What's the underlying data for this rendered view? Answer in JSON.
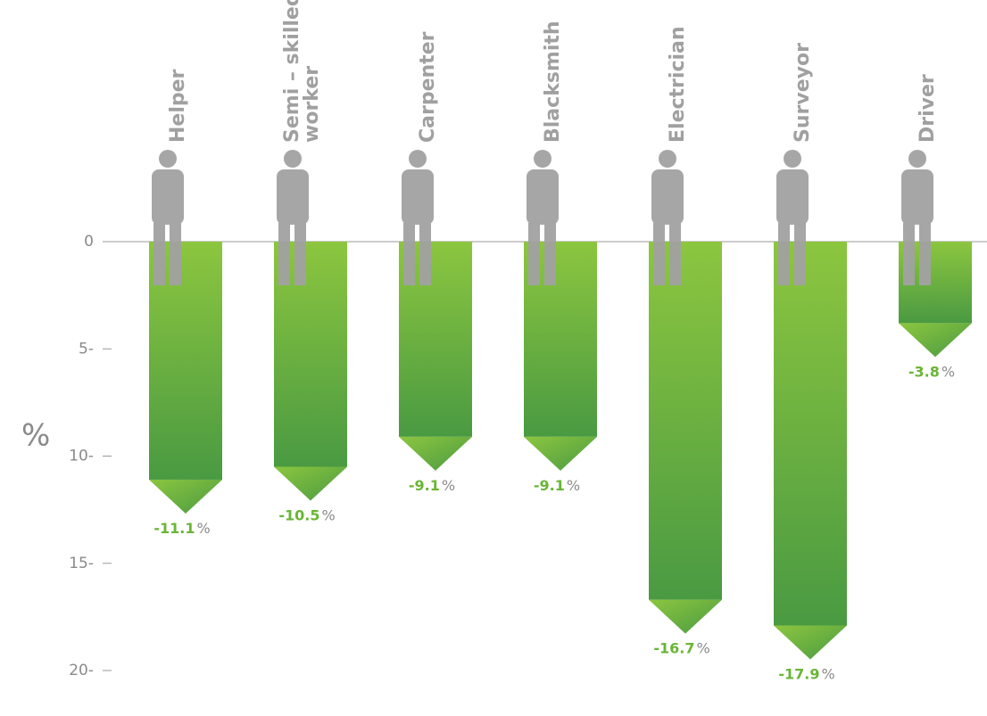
{
  "chart_data": {
    "type": "bar",
    "categories": [
      "Helper",
      "Semi – skilled\nworker",
      "Carpenter",
      "Blacksmith",
      "Electrician",
      "Surveyor",
      "Driver"
    ],
    "values": [
      -11.1,
      -10.5,
      -9.1,
      -9.1,
      -16.7,
      -17.9,
      -3.8
    ],
    "value_labels": [
      "-11.1",
      "-10.5",
      "-9.1",
      "-9.1",
      "-16.7",
      "-17.9",
      "-3.8"
    ],
    "value_label_suffix": "%",
    "y_label": "%",
    "ylim": [
      -20,
      0
    ],
    "yticks": [
      0,
      {
        "value": -5,
        "label": "5-"
      },
      {
        "value": -10,
        "label": "10-"
      },
      {
        "value": -15,
        "label": "15-"
      },
      {
        "value": -20,
        "label": "20-"
      }
    ],
    "colors": [
      "#8cc63f",
      "#4a9a42"
    ]
  }
}
